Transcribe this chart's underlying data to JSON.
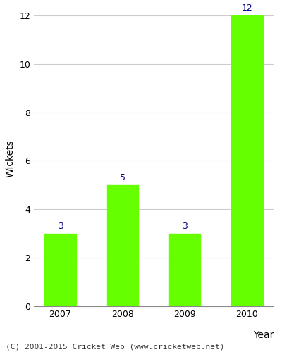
{
  "categories": [
    "2007",
    "2008",
    "2009",
    "2010"
  ],
  "values": [
    3,
    5,
    3,
    12
  ],
  "bar_color": "#66ff00",
  "bar_edgecolor": "#66ff00",
  "xlabel": "Year",
  "ylabel": "Wickets",
  "ylim": [
    0,
    12
  ],
  "yticks": [
    0,
    2,
    4,
    6,
    8,
    10,
    12
  ],
  "label_color": "#000080",
  "label_fontsize": 9,
  "axis_fontsize": 10,
  "tick_fontsize": 9,
  "footer_text": "(C) 2001-2015 Cricket Web (www.cricketweb.net)",
  "footer_fontsize": 8,
  "background_color": "#ffffff",
  "grid_color": "#cccccc"
}
